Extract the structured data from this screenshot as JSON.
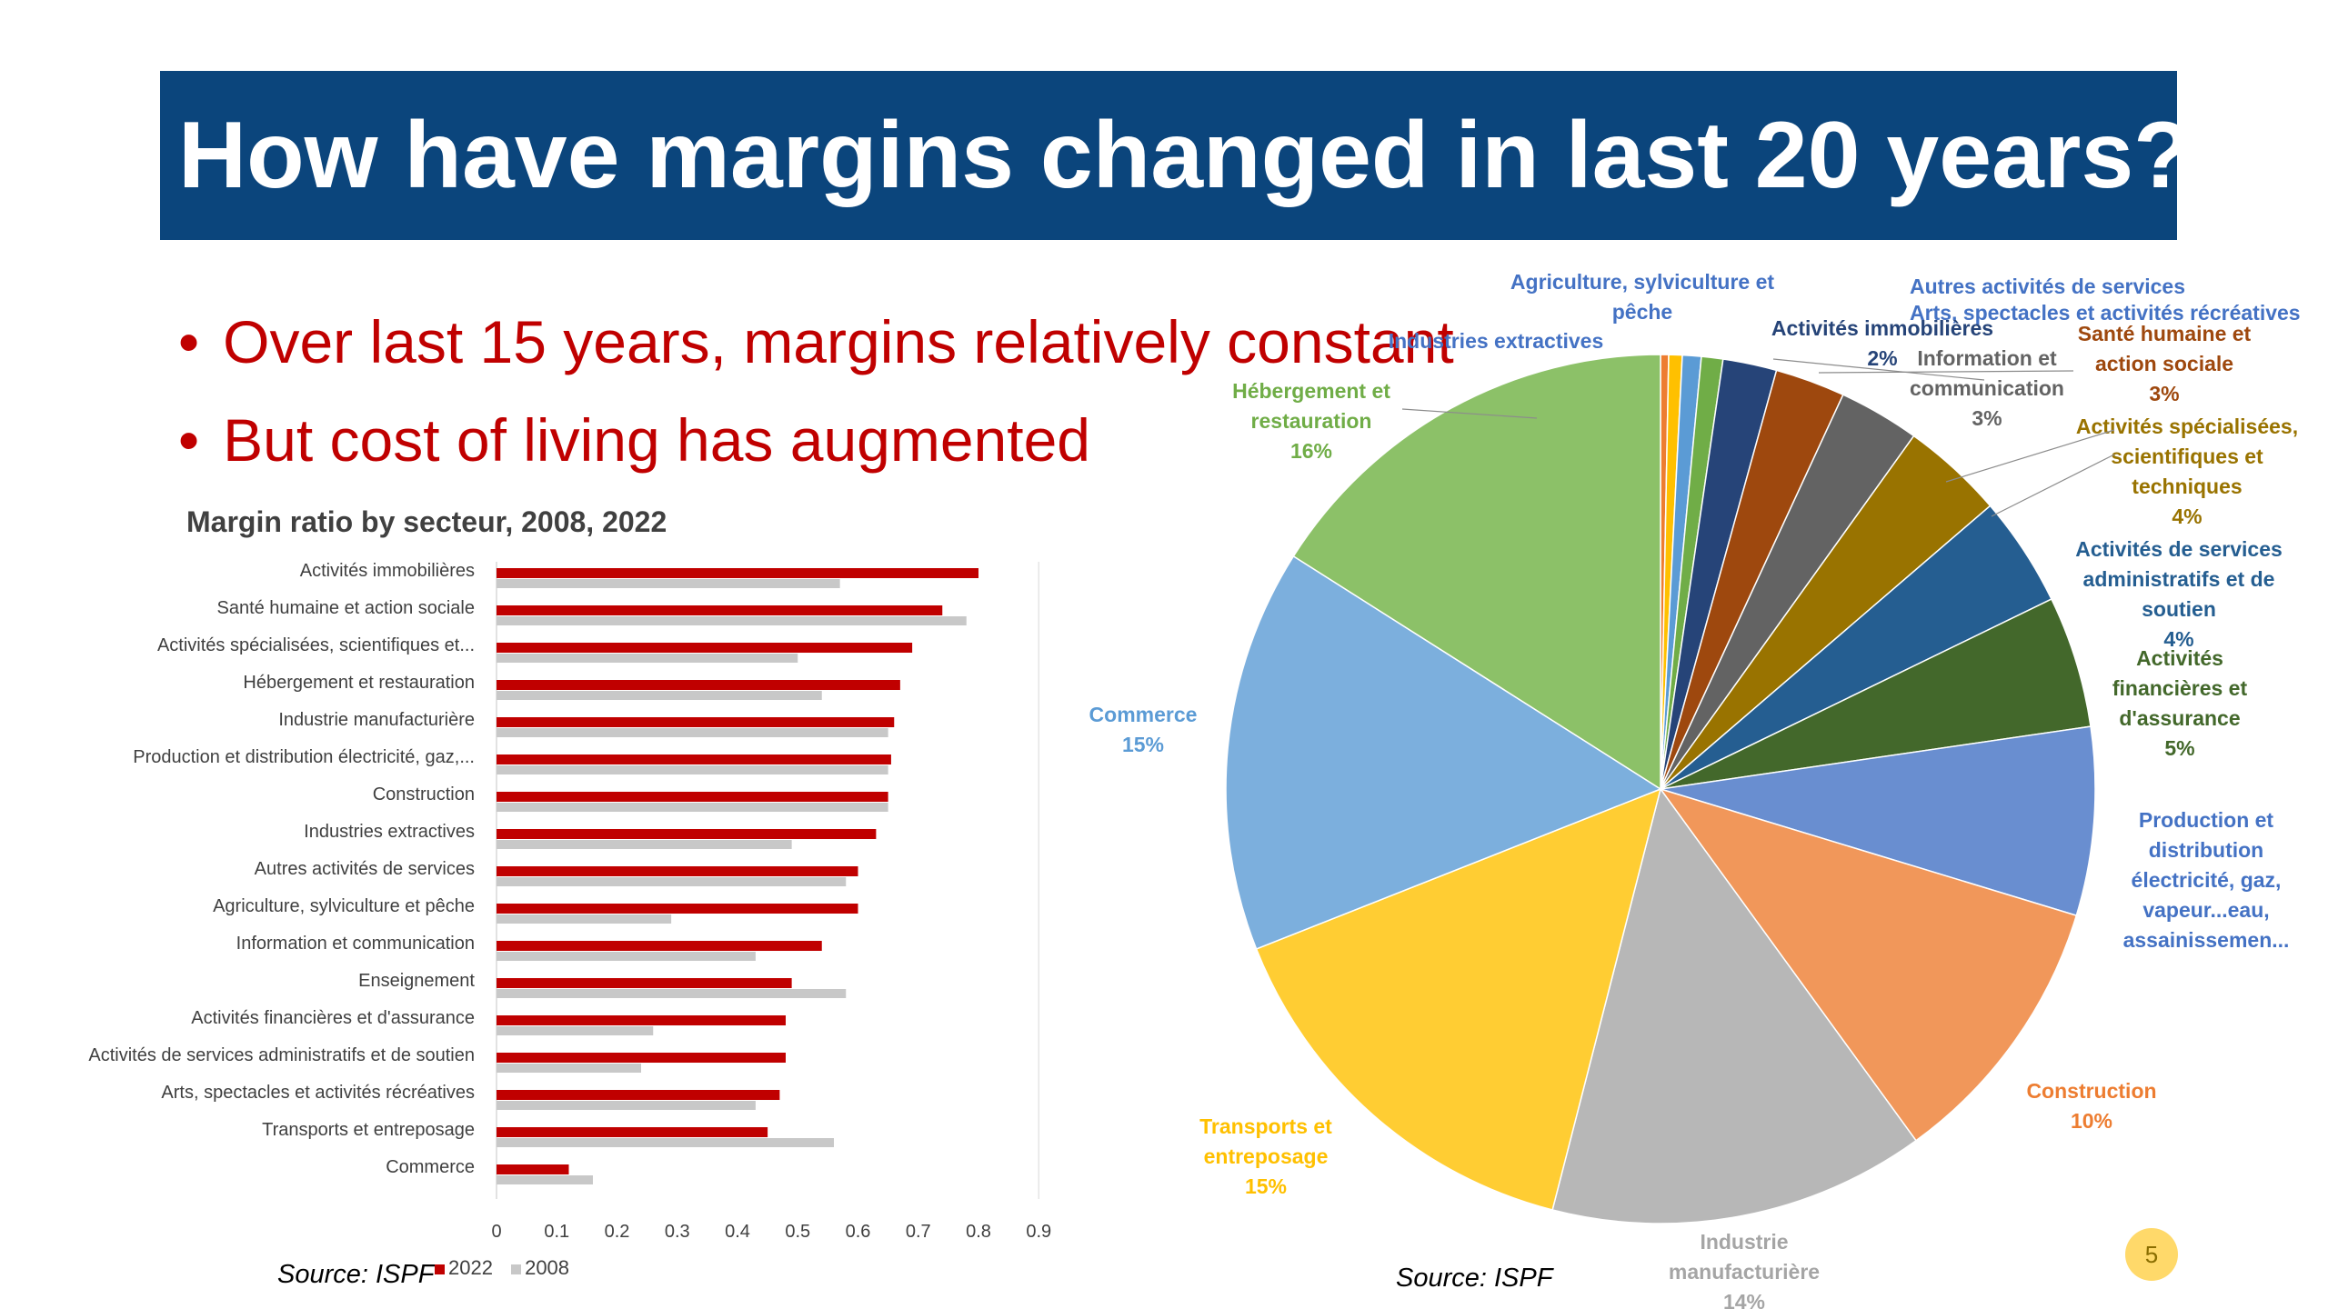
{
  "slide": {
    "title": "How have margins changed in last 20 years?",
    "bullets": [
      "Over last 15 years, margins relatively constant",
      "But cost of living has augmented"
    ],
    "bullet_marker": "•",
    "page_number": "5",
    "colors": {
      "banner": "#0b457c",
      "bullet_text": "#c00000",
      "badge": "#ffd96a"
    }
  },
  "bar_chart": {
    "source": "Source: ISPF"
  },
  "pie_chart": {
    "source": "Source: ISPF"
  },
  "chart_data": [
    {
      "type": "bar",
      "orientation": "horizontal",
      "title": "Margin ratio by secteur, 2008, 2022",
      "xlabel": "",
      "ylabel": "",
      "xlim": [
        0,
        0.9
      ],
      "xticks": [
        "0",
        "0.1",
        "0.2",
        "0.3",
        "0.4",
        "0.5",
        "0.6",
        "0.7",
        "0.8",
        "0.9"
      ],
      "grid": false,
      "legend_position": "bottom-left",
      "categories": [
        "Activités immobilières",
        "Santé humaine et action sociale",
        "Activités spécialisées, scientifiques et...",
        "Hébergement et restauration",
        "Industrie manufacturière",
        "Production et distribution électricité, gaz,...",
        "Construction",
        "Industries extractives",
        "Autres activités de services",
        "Agriculture, sylviculture et pêche",
        "Information et communication",
        "Enseignement",
        "Activités financières et d'assurance",
        "Activités de services administratifs et de soutien",
        "Arts, spectacles et activités récréatives",
        "Transports et entreposage",
        "Commerce"
      ],
      "series": [
        {
          "name": "2022",
          "color": "#c00000",
          "values": [
            0.8,
            0.74,
            0.69,
            0.67,
            0.66,
            0.655,
            0.65,
            0.63,
            0.6,
            0.6,
            0.54,
            0.49,
            0.48,
            0.48,
            0.47,
            0.45,
            0.12
          ]
        },
        {
          "name": "2008",
          "color": "#c8c8c8",
          "values": [
            0.57,
            0.78,
            0.5,
            0.54,
            0.65,
            0.65,
            0.65,
            0.49,
            0.58,
            0.29,
            0.43,
            0.58,
            0.26,
            0.24,
            0.43,
            0.56,
            0.16
          ]
        }
      ]
    },
    {
      "type": "pie",
      "title": "",
      "slices": [
        {
          "label": "Agriculture, sylviculture et pêche",
          "value": 0.3,
          "color": "#ed7d31",
          "label_color": "#4472c4",
          "percent_label": ""
        },
        {
          "label": "Industries extractives",
          "value": 0.5,
          "color": "#ffc000",
          "label_color": "#4472c4",
          "percent_label": ""
        },
        {
          "label": "Autres activités de services",
          "value": 0.7,
          "color": "#5b9bd5",
          "label_color": "#4472c4",
          "percent_label": ""
        },
        {
          "label": "Arts, spectacles et activités récréatives",
          "value": 0.8,
          "color": "#70ad47",
          "label_color": "#4472c4",
          "percent_label": ""
        },
        {
          "label": "Activités immobilières",
          "value": 2,
          "color": "#264478",
          "label_color": "#264478",
          "percent_label": "2%"
        },
        {
          "label": "Santé humaine et action sociale",
          "value": 2.6,
          "color": "#9e480e",
          "label_color": "#9e480e",
          "percent_label": "3%"
        },
        {
          "label": "Information et communication",
          "value": 3,
          "color": "#636363",
          "label_color": "#636363",
          "percent_label": "3%"
        },
        {
          "label": "Activités spécialisées, scientifiques et techniques",
          "value": 3.8,
          "color": "#997300",
          "label_color": "#997300",
          "percent_label": "4%"
        },
        {
          "label": "Activités de services administratifs et de soutien",
          "value": 4.1,
          "color": "#255e91",
          "label_color": "#255e91",
          "percent_label": "4%"
        },
        {
          "label": "Activités financières et d'assurance",
          "value": 4.9,
          "color": "#43682b",
          "label_color": "#43682b",
          "percent_label": "5%"
        },
        {
          "label": "Production et distribution électricité, gaz, vapeur...eau, assainissemen...",
          "value": 7,
          "color": "#698ed0",
          "label_color": "#4472c4",
          "percent_label": ""
        },
        {
          "label": "Construction",
          "value": 10.3,
          "color": "#f1975a",
          "label_color": "#ed7d31",
          "percent_label": "10%"
        },
        {
          "label": "Industrie manufacturière",
          "value": 14,
          "color": "#b7b7b7",
          "label_color": "#a5a5a5",
          "percent_label": "14%"
        },
        {
          "label": "Transports et entreposage",
          "value": 15,
          "color": "#ffcd33",
          "label_color": "#ffc000",
          "percent_label": "15%"
        },
        {
          "label": "Commerce",
          "value": 15,
          "color": "#7cafdd",
          "label_color": "#5b9bd5",
          "percent_label": "15%"
        },
        {
          "label": "Hébergement et restauration",
          "value": 16,
          "color": "#8cc168",
          "label_color": "#70ad47",
          "percent_label": "16%"
        }
      ]
    }
  ]
}
